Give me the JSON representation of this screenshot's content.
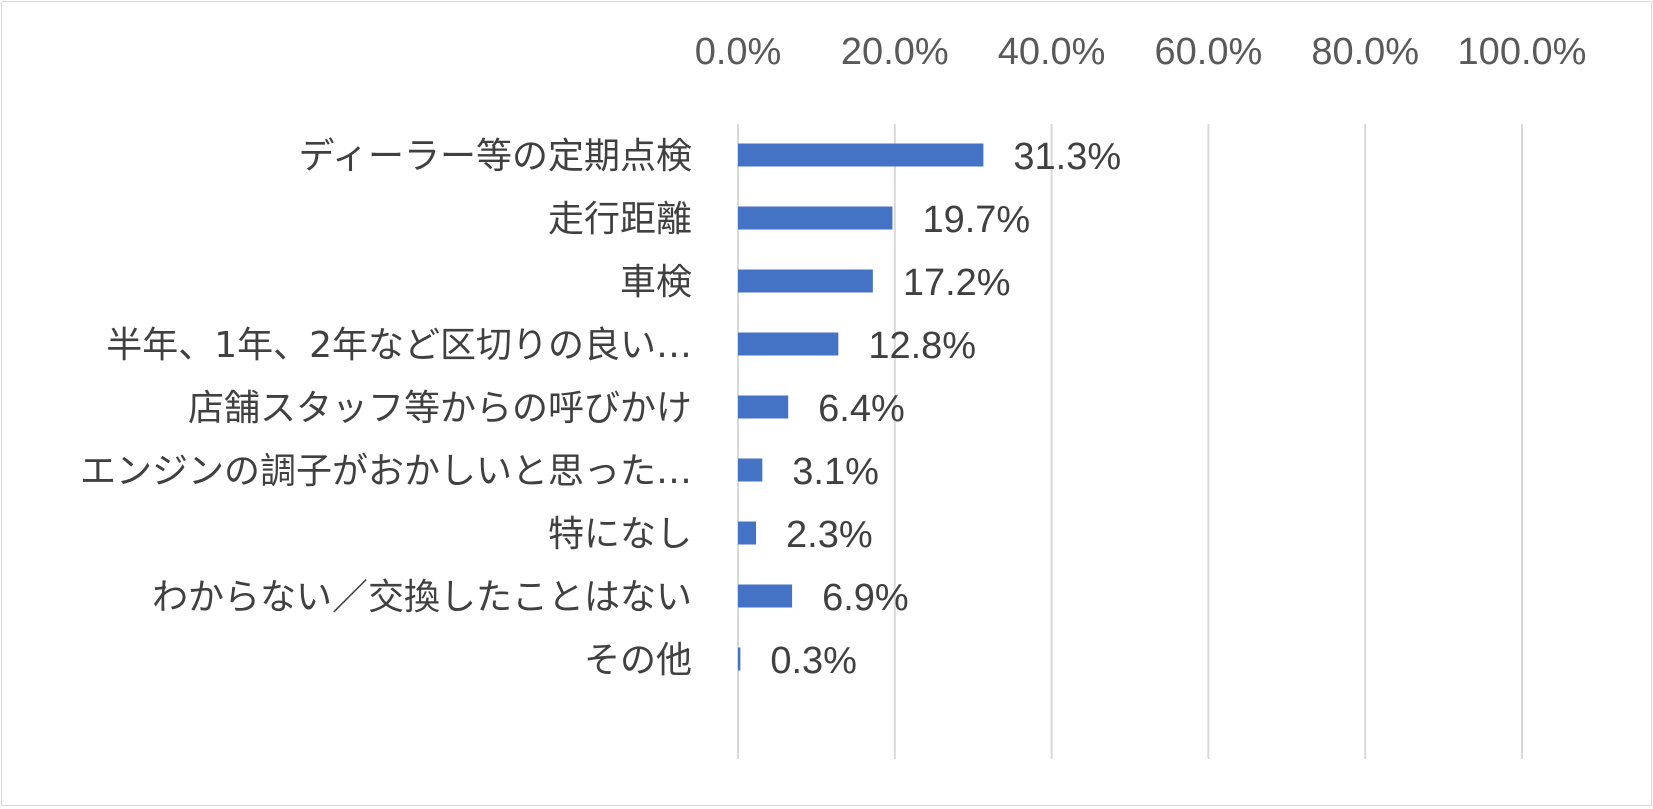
{
  "chart_data": {
    "type": "bar",
    "orientation": "horizontal",
    "categories": [
      "ディーラー等の定期点検",
      "走行距離",
      "車検",
      "半年、1年、2年など区切りの良い…",
      "店舗スタッフ等からの呼びかけ",
      "エンジンの調子がおかしいと思った…",
      "特になし",
      "わからない／交換したことはない",
      "その他"
    ],
    "values": [
      31.3,
      19.7,
      17.2,
      12.8,
      6.4,
      3.1,
      2.3,
      6.9,
      0.3
    ],
    "value_labels": [
      "31.3%",
      "19.7%",
      "17.2%",
      "12.8%",
      "6.4%",
      "3.1%",
      "2.3%",
      "6.9%",
      "0.3%"
    ],
    "xlim": [
      0,
      100
    ],
    "x_ticks": [
      0,
      20,
      40,
      60,
      80,
      100
    ],
    "x_tick_labels": [
      "0.0%",
      "20.0%",
      "40.0%",
      "60.0%",
      "80.0%",
      "100.0%"
    ],
    "x_axis_position": "top",
    "grid": true,
    "legend": "none",
    "bar_color": "#4472c4",
    "grid_color": "#d9d9d9",
    "title": "",
    "xlabel": "",
    "ylabel": ""
  }
}
